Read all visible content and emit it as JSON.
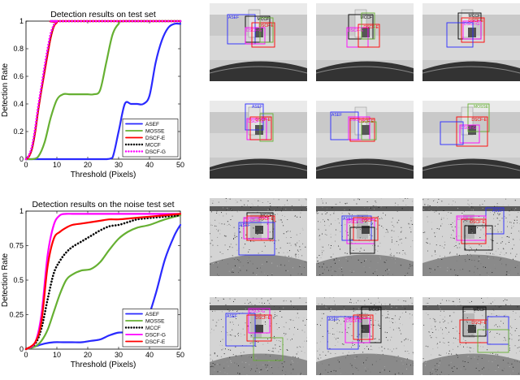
{
  "chart_data": [
    {
      "type": "line",
      "title": "Detection results on test set",
      "xlabel": "Threshold (Pixels)",
      "ylabel": "Detection Rate",
      "xlim": [
        0,
        50
      ],
      "ylim": [
        0,
        1
      ],
      "xticks": [
        0,
        10,
        20,
        30,
        40,
        50
      ],
      "yticks": [
        0,
        0.2,
        0.4,
        0.6,
        0.8,
        1
      ],
      "legend_position": "bottom-right",
      "series": [
        {
          "name": "ASEF",
          "color": "#2a2aff",
          "style": "solid",
          "x": [
            0,
            20,
            24,
            26,
            28,
            30,
            32,
            34,
            36,
            38,
            40,
            42,
            44,
            46,
            48,
            50
          ],
          "y": [
            0,
            0,
            0,
            0,
            0.01,
            0.2,
            0.4,
            0.4,
            0.4,
            0.4,
            0.46,
            0.7,
            0.86,
            0.95,
            0.98,
            0.98
          ]
        },
        {
          "name": "MOSSE",
          "color": "#66b032",
          "style": "solid",
          "x": [
            0,
            2,
            4,
            6,
            8,
            10,
            12,
            14,
            16,
            18,
            20,
            22,
            24,
            26,
            28,
            30,
            32,
            50
          ],
          "y": [
            0,
            0,
            0.02,
            0.12,
            0.3,
            0.43,
            0.47,
            0.47,
            0.47,
            0.47,
            0.47,
            0.47,
            0.5,
            0.7,
            0.9,
            0.98,
            1,
            1
          ]
        },
        {
          "name": "DSCF-E",
          "color": "#ff0000",
          "style": "solid",
          "x": [
            0,
            1,
            2,
            3,
            4,
            5,
            6,
            7,
            8,
            9,
            10,
            11,
            50
          ],
          "y": [
            0,
            0.02,
            0.08,
            0.2,
            0.36,
            0.5,
            0.63,
            0.76,
            0.88,
            0.96,
            0.99,
            1,
            1
          ]
        },
        {
          "name": "MCCF",
          "color": "#000000",
          "style": "dotted",
          "x": [
            0,
            1,
            2,
            3,
            4,
            5,
            6,
            7,
            8,
            9,
            10,
            11,
            50
          ],
          "y": [
            0,
            0.03,
            0.09,
            0.22,
            0.38,
            0.52,
            0.66,
            0.79,
            0.9,
            0.97,
            1,
            1,
            1
          ]
        },
        {
          "name": "DSCF-G",
          "color": "#ff00ff",
          "style": "dotted",
          "x": [
            0,
            1,
            2,
            3,
            4,
            5,
            6,
            7,
            8,
            9,
            10,
            11,
            50
          ],
          "y": [
            0,
            0.03,
            0.1,
            0.23,
            0.39,
            0.53,
            0.67,
            0.8,
            0.91,
            0.97,
            1,
            1,
            1
          ]
        }
      ]
    },
    {
      "type": "line",
      "title": "Detection results on the noise test set",
      "xlabel": "Threshold (Pixels)",
      "ylabel": "Detection Rate",
      "xlim": [
        0,
        50
      ],
      "ylim": [
        0,
        1
      ],
      "xticks": [
        0,
        10,
        20,
        30,
        40,
        50
      ],
      "yticks": [
        0,
        0.25,
        0.5,
        0.75,
        1
      ],
      "legend_position": "bottom-right",
      "series": [
        {
          "name": "ASEF",
          "color": "#2a2aff",
          "style": "solid",
          "x": [
            0,
            3,
            6,
            9,
            12,
            15,
            18,
            21,
            24,
            27,
            30,
            33,
            36,
            39,
            42,
            45,
            48,
            50
          ],
          "y": [
            0,
            0.02,
            0.04,
            0.05,
            0.05,
            0.05,
            0.05,
            0.06,
            0.07,
            0.1,
            0.12,
            0.12,
            0.13,
            0.2,
            0.4,
            0.65,
            0.82,
            0.9
          ]
        },
        {
          "name": "MOSSE",
          "color": "#66b032",
          "style": "solid",
          "x": [
            0,
            3,
            5,
            7,
            9,
            11,
            13,
            15,
            18,
            21,
            24,
            27,
            30,
            33,
            36,
            40,
            45,
            50
          ],
          "y": [
            0,
            0.02,
            0.06,
            0.14,
            0.27,
            0.4,
            0.5,
            0.54,
            0.57,
            0.58,
            0.63,
            0.72,
            0.8,
            0.85,
            0.88,
            0.9,
            0.94,
            0.97
          ]
        },
        {
          "name": "MCCF",
          "color": "#000000",
          "style": "dotted",
          "x": [
            0,
            3,
            5,
            7,
            9,
            11,
            13,
            15,
            18,
            21,
            24,
            27,
            30,
            33,
            36,
            40,
            45,
            50
          ],
          "y": [
            0,
            0.04,
            0.15,
            0.36,
            0.55,
            0.64,
            0.7,
            0.74,
            0.78,
            0.82,
            0.86,
            0.89,
            0.9,
            0.92,
            0.94,
            0.95,
            0.96,
            0.97
          ]
        },
        {
          "name": "DSCF-G",
          "color": "#ff00ff",
          "style": "solid",
          "x": [
            0,
            3,
            5,
            7,
            9,
            11,
            13,
            15,
            18,
            21,
            24,
            27,
            30,
            35,
            40,
            45,
            50
          ],
          "y": [
            0,
            0.05,
            0.25,
            0.68,
            0.9,
            0.97,
            0.98,
            0.98,
            0.98,
            0.98,
            0.98,
            0.98,
            0.98,
            0.98,
            0.98,
            0.98,
            0.98
          ]
        },
        {
          "name": "DSCF-E",
          "color": "#ff0000",
          "style": "solid",
          "x": [
            0,
            3,
            5,
            7,
            9,
            11,
            13,
            15,
            18,
            21,
            24,
            27,
            30,
            35,
            40,
            45,
            50
          ],
          "y": [
            0,
            0.05,
            0.2,
            0.6,
            0.8,
            0.85,
            0.88,
            0.9,
            0.91,
            0.92,
            0.93,
            0.94,
            0.94,
            0.95,
            0.96,
            0.97,
            0.98
          ]
        }
      ]
    }
  ],
  "thumbnails": [
    {
      "noise": false,
      "boxes": [
        {
          "label": "ASEF",
          "color": "#2a2aff",
          "lx": "left"
        },
        {
          "label": "MCCF",
          "color": "#000000",
          "lx": "right"
        },
        {
          "label": "DSCF-G",
          "color": "#ff00ff",
          "lx": "left"
        },
        {
          "label": "DSCF-E",
          "color": "#ff0000",
          "lx": "right"
        },
        {
          "label": "",
          "color": "#66b032",
          "lx": "left"
        }
      ]
    },
    {
      "noise": false,
      "boxes": [
        {
          "label": "MCCF",
          "color": "#000000",
          "lx": "right"
        },
        {
          "label": "DSCF-G",
          "color": "#ff00ff",
          "lx": "left"
        },
        {
          "label": "DSCF-E",
          "color": "#ff0000",
          "lx": "right"
        },
        {
          "label": "",
          "color": "#66b032",
          "lx": "left"
        }
      ]
    },
    {
      "noise": false,
      "boxes": [
        {
          "label": "MCCF",
          "color": "#000000",
          "lx": "right"
        },
        {
          "label": "DSCF-G",
          "color": "#ff00ff",
          "lx": "left"
        },
        {
          "label": "DSCF-E",
          "color": "#ff0000",
          "lx": "right"
        },
        {
          "label": "",
          "color": "#2a2aff",
          "lx": "left"
        }
      ]
    },
    {
      "noise": false,
      "boxes": [
        {
          "label": "ASEF",
          "color": "#2a2aff",
          "lx": "right"
        },
        {
          "label": "DSCF-G",
          "color": "#ff00ff",
          "lx": "left"
        },
        {
          "label": "DSCF-E",
          "color": "#ff0000",
          "lx": "right"
        },
        {
          "label": "",
          "color": "#66b032",
          "lx": "left"
        }
      ]
    },
    {
      "noise": false,
      "boxes": [
        {
          "label": "ASEF",
          "color": "#2a2aff",
          "lx": "left"
        },
        {
          "label": "DSCF-G",
          "color": "#ff00ff",
          "lx": "left"
        },
        {
          "label": "DSCF-E",
          "color": "#ff0000",
          "lx": "right"
        },
        {
          "label": "",
          "color": "#66b032",
          "lx": "left"
        }
      ]
    },
    {
      "noise": false,
      "boxes": [
        {
          "label": "MOSSE",
          "color": "#66b032",
          "lx": "right"
        },
        {
          "label": "DSCF-G",
          "color": "#ff00ff",
          "lx": "left"
        },
        {
          "label": "DSCF-E",
          "color": "#ff0000",
          "lx": "right"
        },
        {
          "label": "",
          "color": "#2a2aff",
          "lx": "left"
        }
      ]
    },
    {
      "noise": true,
      "boxes": [
        {
          "label": "MCCF",
          "color": "#000000",
          "lx": "right"
        },
        {
          "label": "DSCF-G",
          "color": "#ff00ff",
          "lx": "left"
        },
        {
          "label": "DSCF-E",
          "color": "#ff0000",
          "lx": "right"
        },
        {
          "label": "ASEF",
          "color": "#2a2aff",
          "lx": "left"
        }
      ]
    },
    {
      "noise": true,
      "boxes": [
        {
          "label": "ASEF",
          "color": "#2a2aff",
          "lx": "left"
        },
        {
          "label": "DSCF-G",
          "color": "#ff00ff",
          "lx": "left"
        },
        {
          "label": "DSCF-E",
          "color": "#ff0000",
          "lx": "right"
        },
        {
          "label": "",
          "color": "#000000",
          "lx": "left"
        }
      ]
    },
    {
      "noise": true,
      "boxes": [
        {
          "label": "ASEF",
          "color": "#2a2aff",
          "lx": "right"
        },
        {
          "label": "DSCF-G",
          "color": "#ff00ff",
          "lx": "left"
        },
        {
          "label": "DSCF-E",
          "color": "#ff0000",
          "lx": "right"
        },
        {
          "label": "",
          "color": "#000000",
          "lx": "left"
        }
      ]
    },
    {
      "noise": true,
      "boxes": [
        {
          "label": "ASEF",
          "color": "#2a2aff",
          "lx": "left"
        },
        {
          "label": "DSCF-G",
          "color": "#ff00ff",
          "lx": "left"
        },
        {
          "label": "DSCF-E",
          "color": "#ff0000",
          "lx": "right"
        },
        {
          "label": "",
          "color": "#66b032",
          "lx": "left"
        }
      ]
    },
    {
      "noise": true,
      "boxes": [
        {
          "label": "ASEF",
          "color": "#2a2aff",
          "lx": "left"
        },
        {
          "label": "MCCF",
          "color": "#000000",
          "lx": "right"
        },
        {
          "label": "DSCF-G",
          "color": "#ff00ff",
          "lx": "left"
        },
        {
          "label": "DSCF-E",
          "color": "#ff0000",
          "lx": "right"
        }
      ]
    },
    {
      "noise": true,
      "boxes": [
        {
          "label": "MCCF",
          "color": "#000000",
          "lx": "right"
        },
        {
          "label": "DSCF-E",
          "color": "#ff0000",
          "lx": "right"
        },
        {
          "label": "",
          "color": "#2a2aff",
          "lx": "left"
        },
        {
          "label": "",
          "color": "#66b032",
          "lx": "left"
        }
      ]
    }
  ]
}
